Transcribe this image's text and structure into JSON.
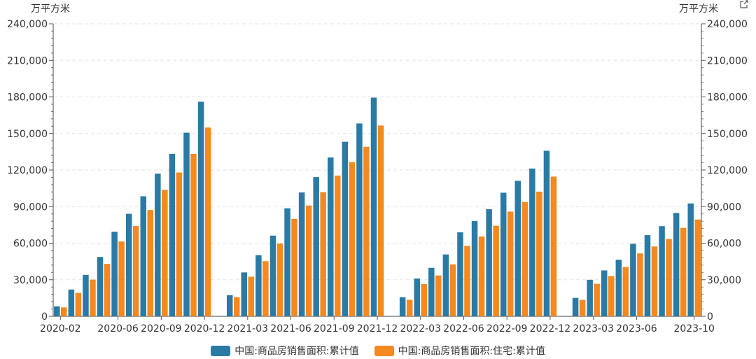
{
  "chart_data": {
    "type": "bar",
    "unit_left": "万平方米",
    "unit_right": "万平方米",
    "categories": [
      "2020-02",
      "2020-03",
      "2020-04",
      "2020-05",
      "2020-06",
      "2020-07",
      "2020-08",
      "2020-09",
      "2020-10",
      "2020-11",
      "2020-12",
      "2021-01",
      "2021-02",
      "2021-03",
      "2021-04",
      "2021-05",
      "2021-06",
      "2021-07",
      "2021-08",
      "2021-09",
      "2021-10",
      "2021-11",
      "2021-12",
      "2022-01",
      "2022-02",
      "2022-03",
      "2022-04",
      "2022-05",
      "2022-06",
      "2022-07",
      "2022-08",
      "2022-09",
      "2022-10",
      "2022-11",
      "2022-12",
      "2023-01",
      "2023-02",
      "2023-03",
      "2023-04",
      "2023-05",
      "2023-06",
      "2023-07",
      "2023-08",
      "2023-09",
      "2023-10"
    ],
    "x_tick_labels": [
      {
        "index": 0,
        "label": "2020-02"
      },
      {
        "index": 4,
        "label": "2020-06"
      },
      {
        "index": 7,
        "label": "2020-09"
      },
      {
        "index": 10,
        "label": "2020-12"
      },
      {
        "index": 13,
        "label": "2021-03"
      },
      {
        "index": 16,
        "label": "2021-06"
      },
      {
        "index": 19,
        "label": "2021-09"
      },
      {
        "index": 22,
        "label": "2021-12"
      },
      {
        "index": 25,
        "label": "2022-03"
      },
      {
        "index": 28,
        "label": "2022-06"
      },
      {
        "index": 31,
        "label": "2022-09"
      },
      {
        "index": 34,
        "label": "2022-12"
      },
      {
        "index": 37,
        "label": "2023-03"
      },
      {
        "index": 40,
        "label": "2023-06"
      },
      {
        "index": 44,
        "label": "2023-10"
      }
    ],
    "series": [
      {
        "name": "中国:商品房销售面积:累计值",
        "color": "#2a7aa6",
        "values": [
          8203,
          21978,
          33973,
          48703,
          69404,
          84115,
          98486,
          117073,
          133294,
          150650,
          176086,
          null,
          17363,
          36007,
          50208,
          66179,
          88635,
          101643,
          114193,
          130332,
          143180,
          158215,
          179433,
          null,
          15703,
          31046,
          39768,
          50738,
          68923,
          78178,
          87890,
          101422,
          111179,
          121250,
          135837,
          null,
          15133,
          29946,
          37636,
          46440,
          59515,
          66563,
          73949,
          84806,
          92579
        ]
      },
      {
        "name": "中国:商品房销售面积:住宅:累计值",
        "color": "#f5881e",
        "values": [
          7303,
          19228,
          30100,
          43000,
          61400,
          74100,
          87200,
          103700,
          118000,
          133200,
          154878,
          null,
          15700,
          32500,
          45200,
          59700,
          79900,
          90900,
          101900,
          115500,
          126500,
          139100,
          156532,
          null,
          13600,
          26400,
          33500,
          42600,
          57800,
          65500,
          74300,
          85900,
          93800,
          102300,
          114631,
          null,
          13500,
          26700,
          33000,
          40500,
          51600,
          57300,
          63500,
          72600,
          79400
        ]
      }
    ],
    "ylim": [
      0,
      240000
    ],
    "yticks": [
      "0",
      "30,000",
      "60,000",
      "90,000",
      "120,000",
      "150,000",
      "180,000",
      "210,000",
      "240,000"
    ],
    "grid": true,
    "legend_position": "bottom"
  },
  "legend": {
    "items": [
      {
        "label": "中国:商品房销售面积:累计值",
        "color": "#2a7aa6"
      },
      {
        "label": "中国:商品房销售面积:住宅:累计值",
        "color": "#f5881e"
      }
    ]
  }
}
